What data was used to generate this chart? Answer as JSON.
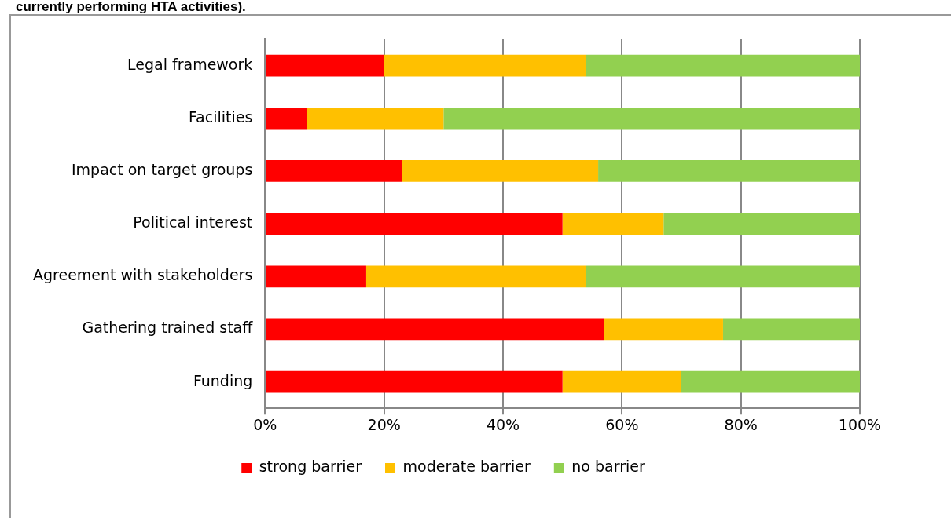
{
  "chart_data": {
    "type": "bar",
    "orientation": "horizontal",
    "stacked": true,
    "title": "currently performing HTA activities).",
    "categories": [
      "Legal framework",
      "Facilities",
      "Impact on target groups",
      "Political interest",
      "Agreement with stakeholders",
      "Gathering trained staff",
      "Funding"
    ],
    "series": [
      {
        "name": "strong barrier",
        "color": "#ff0000",
        "values": [
          20,
          7,
          23,
          50,
          17,
          57,
          50
        ]
      },
      {
        "name": "moderate barrier",
        "color": "#ffc000",
        "values": [
          34,
          23,
          33,
          17,
          37,
          20,
          20
        ]
      },
      {
        "name": "no barrier",
        "color": "#92d050",
        "values": [
          46,
          70,
          44,
          33,
          46,
          23,
          30
        ]
      }
    ],
    "xlim": [
      0,
      100
    ],
    "xticks": [
      {
        "value": 0,
        "label": "0%"
      },
      {
        "value": 20,
        "label": "20%"
      },
      {
        "value": 40,
        "label": "40%"
      },
      {
        "value": 60,
        "label": "60%"
      },
      {
        "value": 80,
        "label": "80%"
      },
      {
        "value": 100,
        "label": "100%"
      }
    ],
    "grid": "x",
    "legend": "bottom"
  }
}
